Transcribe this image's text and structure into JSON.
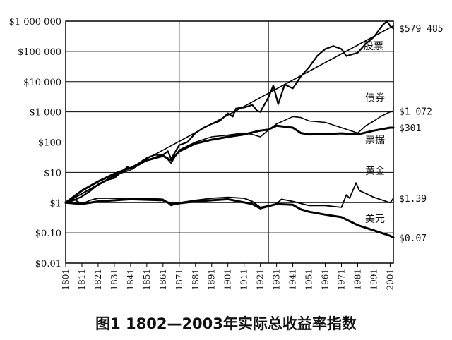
{
  "caption": "图1 1802—2003年实际总收益率指数",
  "chart_data": {
    "type": "line",
    "title": "图1 1802—2003年实际总收益率指数",
    "y_scale": "log",
    "ylim": [
      0.01,
      1000000
    ],
    "xlim": [
      1801,
      2003
    ],
    "y_ticks": [
      0.01,
      0.1,
      1,
      10,
      100,
      1000,
      10000,
      100000,
      1000000
    ],
    "y_tick_labels": [
      "$0.01",
      "$0.10",
      "$1",
      "$10",
      "$100",
      "$1 000",
      "$10 000",
      "$100 000",
      "$1 000 000"
    ],
    "x_ticks": [
      1801,
      1811,
      1821,
      1831,
      1841,
      1851,
      1861,
      1871,
      1881,
      1891,
      1901,
      1911,
      1921,
      1931,
      1941,
      1951,
      1961,
      1971,
      1981,
      1991,
      2001
    ],
    "x_tick_labels": [
      "1801",
      "1811",
      "1821",
      "1831",
      "1841",
      "1851",
      "1861",
      "1871",
      "1881",
      "1891",
      "1901",
      "1911",
      "1921",
      "1931",
      "1941",
      "1951",
      "1961",
      "1971",
      "1981",
      "1991",
      "2001"
    ],
    "vertical_gridlines_at": [
      1871,
      1926
    ],
    "series": [
      {
        "name": "股票",
        "end_label": "$579 485",
        "stroke_width": 2.2,
        "points": [
          [
            1801,
            1
          ],
          [
            1806,
            1.2
          ],
          [
            1811,
            1.6
          ],
          [
            1816,
            2.4
          ],
          [
            1821,
            4
          ],
          [
            1826,
            5.5
          ],
          [
            1831,
            6.5
          ],
          [
            1836,
            11
          ],
          [
            1839,
            15
          ],
          [
            1842,
            13
          ],
          [
            1846,
            20
          ],
          [
            1851,
            30
          ],
          [
            1856,
            38
          ],
          [
            1861,
            38
          ],
          [
            1864,
            50
          ],
          [
            1866,
            28
          ],
          [
            1871,
            80
          ],
          [
            1876,
            100
          ],
          [
            1881,
            200
          ],
          [
            1886,
            300
          ],
          [
            1891,
            400
          ],
          [
            1896,
            500
          ],
          [
            1901,
            900
          ],
          [
            1904,
            700
          ],
          [
            1906,
            1300
          ],
          [
            1911,
            1400
          ],
          [
            1916,
            1700
          ],
          [
            1919,
            1100
          ],
          [
            1921,
            1000
          ],
          [
            1926,
            3000
          ],
          [
            1929,
            7500
          ],
          [
            1932,
            1800
          ],
          [
            1936,
            8000
          ],
          [
            1941,
            6000
          ],
          [
            1946,
            15000
          ],
          [
            1951,
            30000
          ],
          [
            1956,
            70000
          ],
          [
            1961,
            120000
          ],
          [
            1966,
            150000
          ],
          [
            1971,
            120000
          ],
          [
            1974,
            70000
          ],
          [
            1981,
            90000
          ],
          [
            1986,
            180000
          ],
          [
            1991,
            300000
          ],
          [
            1996,
            700000
          ],
          [
            1999,
            1000000
          ],
          [
            2001,
            700000
          ],
          [
            2003,
            579485
          ]
        ]
      },
      {
        "name": "",
        "stroke_width": 1.6,
        "points": [
          [
            1801,
            1
          ],
          [
            2003,
            700000
          ]
        ]
      },
      {
        "name": "债券",
        "end_label": "$1 072",
        "stroke_width": 1.6,
        "points": [
          [
            1801,
            1
          ],
          [
            1811,
            2
          ],
          [
            1821,
            4
          ],
          [
            1831,
            8
          ],
          [
            1841,
            12
          ],
          [
            1851,
            25
          ],
          [
            1861,
            40
          ],
          [
            1866,
            20
          ],
          [
            1871,
            55
          ],
          [
            1881,
            100
          ],
          [
            1891,
            150
          ],
          [
            1901,
            170
          ],
          [
            1911,
            200
          ],
          [
            1916,
            180
          ],
          [
            1921,
            150
          ],
          [
            1926,
            250
          ],
          [
            1931,
            400
          ],
          [
            1941,
            700
          ],
          [
            1946,
            650
          ],
          [
            1951,
            500
          ],
          [
            1961,
            450
          ],
          [
            1971,
            300
          ],
          [
            1981,
            200
          ],
          [
            1986,
            350
          ],
          [
            1991,
            500
          ],
          [
            1996,
            750
          ],
          [
            2001,
            1000
          ],
          [
            2003,
            1072
          ]
        ]
      },
      {
        "name": "票据",
        "end_label": "$301",
        "stroke_width": 3,
        "points": [
          [
            1801,
            1
          ],
          [
            1811,
            2.5
          ],
          [
            1821,
            5
          ],
          [
            1831,
            9
          ],
          [
            1841,
            14
          ],
          [
            1851,
            25
          ],
          [
            1861,
            35
          ],
          [
            1866,
            25
          ],
          [
            1871,
            50
          ],
          [
            1881,
            90
          ],
          [
            1891,
            120
          ],
          [
            1901,
            150
          ],
          [
            1911,
            180
          ],
          [
            1921,
            240
          ],
          [
            1926,
            260
          ],
          [
            1931,
            350
          ],
          [
            1941,
            300
          ],
          [
            1946,
            200
          ],
          [
            1951,
            180
          ],
          [
            1961,
            185
          ],
          [
            1971,
            195
          ],
          [
            1981,
            180
          ],
          [
            1991,
            240
          ],
          [
            2001,
            300
          ],
          [
            2003,
            301
          ]
        ]
      },
      {
        "name": "黄金",
        "end_label": "$1.39",
        "stroke_width": 1.8,
        "points": [
          [
            1801,
            1
          ],
          [
            1806,
            1.3
          ],
          [
            1811,
            0.9
          ],
          [
            1816,
            1.2
          ],
          [
            1821,
            1.4
          ],
          [
            1831,
            1.4
          ],
          [
            1841,
            1.3
          ],
          [
            1851,
            1.4
          ],
          [
            1861,
            1.3
          ],
          [
            1866,
            0.8
          ],
          [
            1871,
            1
          ],
          [
            1881,
            1.2
          ],
          [
            1891,
            1.4
          ],
          [
            1901,
            1.5
          ],
          [
            1911,
            1.4
          ],
          [
            1916,
            1.1
          ],
          [
            1921,
            0.7
          ],
          [
            1931,
            0.9
          ],
          [
            1934,
            1.3
          ],
          [
            1941,
            1.1
          ],
          [
            1951,
            0.8
          ],
          [
            1961,
            0.8
          ],
          [
            1971,
            0.7
          ],
          [
            1974,
            1.8
          ],
          [
            1976,
            1.4
          ],
          [
            1980,
            4.5
          ],
          [
            1982,
            2.5
          ],
          [
            1986,
            2
          ],
          [
            1991,
            1.5
          ],
          [
            2001,
            1
          ],
          [
            2003,
            1.39
          ]
        ]
      },
      {
        "name": "美元",
        "end_label": "$0.07",
        "stroke_width": 3,
        "points": [
          [
            1801,
            1
          ],
          [
            1811,
            0.9
          ],
          [
            1821,
            1.1
          ],
          [
            1841,
            1.3
          ],
          [
            1861,
            1.2
          ],
          [
            1866,
            0.9
          ],
          [
            1871,
            0.95
          ],
          [
            1881,
            1.1
          ],
          [
            1891,
            1.2
          ],
          [
            1901,
            1.3
          ],
          [
            1916,
            0.9
          ],
          [
            1921,
            0.65
          ],
          [
            1931,
            0.9
          ],
          [
            1941,
            0.85
          ],
          [
            1946,
            0.6
          ],
          [
            1951,
            0.5
          ],
          [
            1961,
            0.4
          ],
          [
            1971,
            0.33
          ],
          [
            1981,
            0.18
          ],
          [
            1991,
            0.12
          ],
          [
            2001,
            0.08
          ],
          [
            2003,
            0.07
          ]
        ]
      }
    ]
  }
}
